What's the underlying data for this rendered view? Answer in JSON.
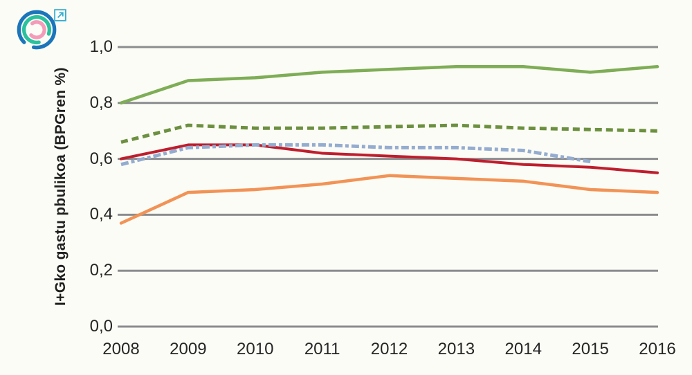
{
  "page": {
    "background_color": "#fcfcf6",
    "gridline_color": "#8a8c8f",
    "text_color": "#262626"
  },
  "logo": {
    "name": "circular-arcs-logo",
    "outer_arc_color": "#1b75bb",
    "middle_arc_color": "#2bc19e",
    "inner_arc_color": "#f49bba"
  },
  "external_link": {
    "color": "#35aecc"
  },
  "chart_data": {
    "type": "line",
    "title": "",
    "xlabel": "",
    "ylabel": "I+Gko gastu pbulikoa (BPGren %)",
    "x": [
      "2008",
      "2009",
      "2010",
      "2011",
      "2012",
      "2013",
      "2014",
      "2015",
      "2016"
    ],
    "ylim": [
      0.0,
      1.0
    ],
    "gridline_values": [
      0.0,
      0.2,
      0.4,
      0.6,
      0.8,
      1.0
    ],
    "ytick_labels": [
      "0,0",
      "0,2",
      "0,4",
      "0,6",
      "0,8",
      "1,0"
    ],
    "grid": true,
    "legend_position": "none",
    "series": [
      {
        "name": "orange-solid-line",
        "color": "#f29356",
        "style": "solid",
        "width": 4.5,
        "values": [
          0.37,
          0.48,
          0.49,
          0.51,
          0.54,
          0.53,
          0.52,
          0.49,
          0.48
        ]
      },
      {
        "name": "red-solid-line",
        "color": "#be1e2d",
        "style": "solid",
        "width": 4,
        "values": [
          0.6,
          0.65,
          0.65,
          0.62,
          0.61,
          0.6,
          0.58,
          0.57,
          0.55
        ]
      },
      {
        "name": "blue-dash-dot-line",
        "color": "#94accf",
        "style": "dashdot",
        "width": 5,
        "values": [
          0.58,
          0.64,
          0.65,
          0.65,
          0.64,
          0.64,
          0.63,
          0.59,
          null
        ]
      },
      {
        "name": "green-dashed-line",
        "color": "#6c9040",
        "style": "dashed",
        "width": 5,
        "values": [
          0.66,
          0.72,
          0.71,
          0.71,
          0.715,
          0.72,
          0.71,
          0.705,
          0.7
        ]
      },
      {
        "name": "green-solid-line",
        "color": "#7ead56",
        "style": "solid",
        "width": 4.5,
        "values": [
          0.8,
          0.88,
          0.89,
          0.91,
          0.92,
          0.93,
          0.93,
          0.91,
          0.93
        ]
      }
    ]
  }
}
